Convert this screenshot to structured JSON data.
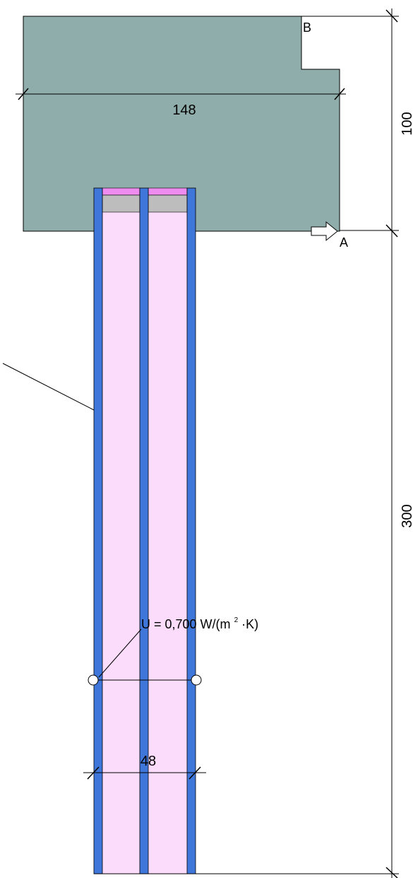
{
  "dimensions": {
    "slab_width": "148",
    "slab_height": "100",
    "wall_height": "300",
    "wall_thickness": "48"
  },
  "labels": {
    "point_a": "A",
    "point_b": "B"
  },
  "u_value": {
    "prefix": "U = 0,700 W/(m",
    "exponent": "2",
    "suffix": "·K)"
  },
  "colors": {
    "slab": "#8fadaa",
    "insulation": "#fbdcfb",
    "board": "#3f76d9",
    "top_strip": "#ef8cef",
    "grey_block": "#bdbdbd"
  }
}
